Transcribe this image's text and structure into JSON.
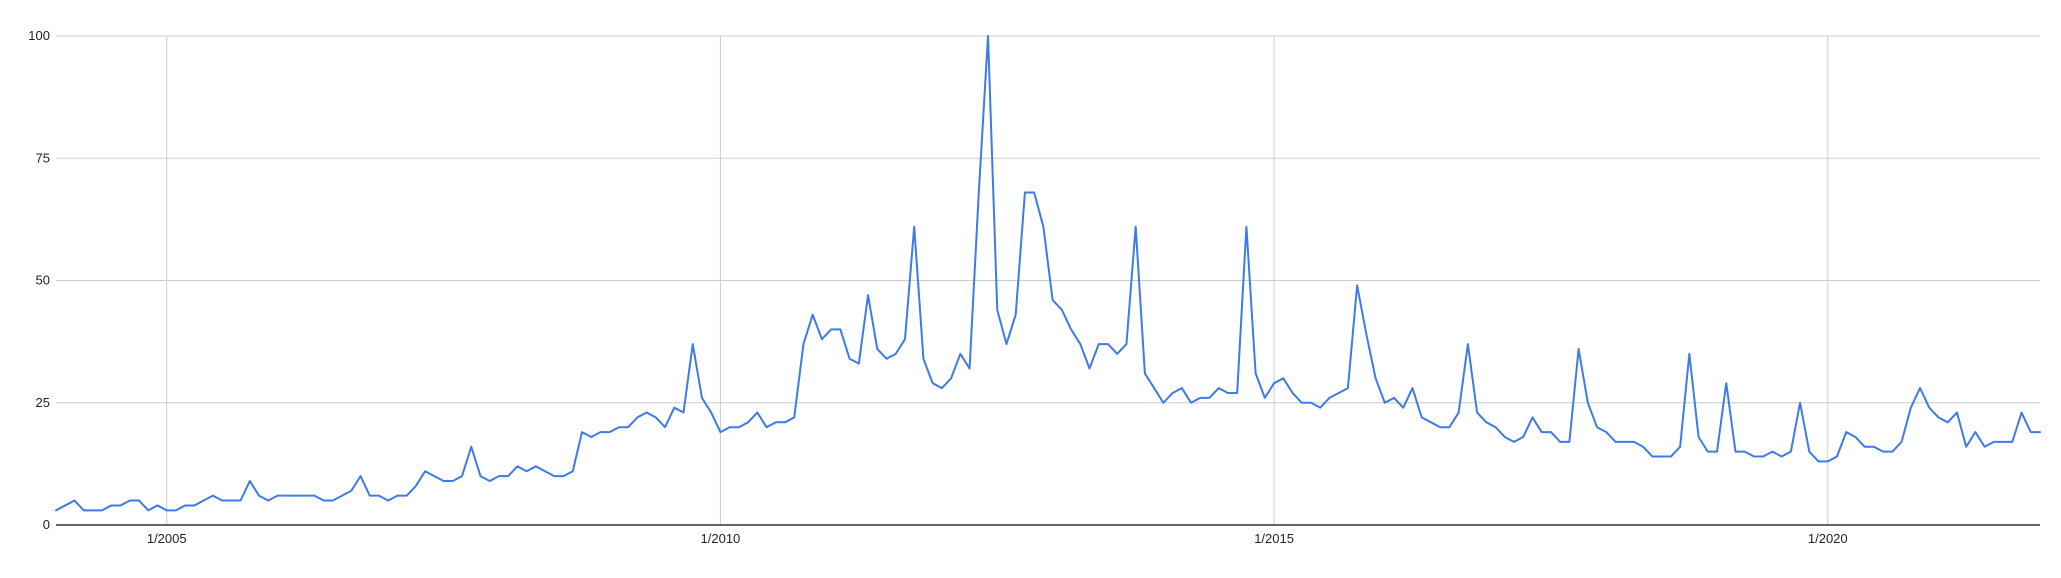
{
  "chart_data": {
    "type": "line",
    "title": "",
    "xlabel": "",
    "ylabel": "",
    "ylim": [
      0,
      100
    ],
    "yticks": [
      0,
      25,
      50,
      75,
      100
    ],
    "xticks": [
      {
        "label": "1/2005",
        "x": "2005-01"
      },
      {
        "label": "1/2010",
        "x": "2010-01"
      },
      {
        "label": "1/2015",
        "x": "2015-01"
      },
      {
        "label": "1/2020",
        "x": "2020-01"
      }
    ],
    "xlim": [
      "2004-01",
      "2021-12"
    ],
    "grid": true,
    "legend": "none",
    "colors": {
      "series": "#3d7be6",
      "grid": "#cccccc",
      "axis": "#333333"
    },
    "series": [
      {
        "x": [
          "2004-01",
          "2004-02",
          "2004-03",
          "2004-04",
          "2004-05",
          "2004-06",
          "2004-07",
          "2004-08",
          "2004-09",
          "2004-10",
          "2004-11",
          "2004-12",
          "2005-01",
          "2005-02",
          "2005-03",
          "2005-04",
          "2005-05",
          "2005-06",
          "2005-07",
          "2005-08",
          "2005-09",
          "2005-10",
          "2005-11",
          "2005-12",
          "2006-01",
          "2006-02",
          "2006-03",
          "2006-04",
          "2006-05",
          "2006-06",
          "2006-07",
          "2006-08",
          "2006-09",
          "2006-10",
          "2006-11",
          "2006-12",
          "2007-01",
          "2007-02",
          "2007-03",
          "2007-04",
          "2007-05",
          "2007-06",
          "2007-07",
          "2007-08",
          "2007-09",
          "2007-10",
          "2007-11",
          "2007-12",
          "2008-01",
          "2008-02",
          "2008-03",
          "2008-04",
          "2008-05",
          "2008-06",
          "2008-07",
          "2008-08",
          "2008-09",
          "2008-10",
          "2008-11",
          "2008-12",
          "2009-01",
          "2009-02",
          "2009-03",
          "2009-04",
          "2009-05",
          "2009-06",
          "2009-07",
          "2009-08",
          "2009-09",
          "2009-10",
          "2009-11",
          "2009-12",
          "2010-01",
          "2010-02",
          "2010-03",
          "2010-04",
          "2010-05",
          "2010-06",
          "2010-07",
          "2010-08",
          "2010-09",
          "2010-10",
          "2010-11",
          "2010-12",
          "2011-01",
          "2011-02",
          "2011-03",
          "2011-04",
          "2011-05",
          "2011-06",
          "2011-07",
          "2011-08",
          "2011-09",
          "2011-10",
          "2011-11",
          "2011-12",
          "2012-01",
          "2012-02",
          "2012-03",
          "2012-04",
          "2012-05",
          "2012-06",
          "2012-07",
          "2012-08",
          "2012-09",
          "2012-10",
          "2012-11",
          "2012-12",
          "2013-01",
          "2013-02",
          "2013-03",
          "2013-04",
          "2013-05",
          "2013-06",
          "2013-07",
          "2013-08",
          "2013-09",
          "2013-10",
          "2013-11",
          "2013-12",
          "2014-01",
          "2014-02",
          "2014-03",
          "2014-04",
          "2014-05",
          "2014-06",
          "2014-07",
          "2014-08",
          "2014-09",
          "2014-10",
          "2014-11",
          "2014-12",
          "2015-01",
          "2015-02",
          "2015-03",
          "2015-04",
          "2015-05",
          "2015-06",
          "2015-07",
          "2015-08",
          "2015-09",
          "2015-10",
          "2015-11",
          "2015-12",
          "2016-01",
          "2016-02",
          "2016-03",
          "2016-04",
          "2016-05",
          "2016-06",
          "2016-07",
          "2016-08",
          "2016-09",
          "2016-10",
          "2016-11",
          "2016-12",
          "2017-01",
          "2017-02",
          "2017-03",
          "2017-04",
          "2017-05",
          "2017-06",
          "2017-07",
          "2017-08",
          "2017-09",
          "2017-10",
          "2017-11",
          "2017-12",
          "2018-01",
          "2018-02",
          "2018-03",
          "2018-04",
          "2018-05",
          "2018-06",
          "2018-07",
          "2018-08",
          "2018-09",
          "2018-10",
          "2018-11",
          "2018-12",
          "2019-01",
          "2019-02",
          "2019-03",
          "2019-04",
          "2019-05",
          "2019-06",
          "2019-07",
          "2019-08",
          "2019-09",
          "2019-10",
          "2019-11",
          "2019-12",
          "2020-01",
          "2020-02",
          "2020-03",
          "2020-04",
          "2020-05",
          "2020-06",
          "2020-07",
          "2020-08",
          "2020-09",
          "2020-10",
          "2020-11",
          "2020-12",
          "2021-01",
          "2021-02",
          "2021-03",
          "2021-04",
          "2021-05",
          "2021-06",
          "2021-07",
          "2021-08",
          "2021-09",
          "2021-10",
          "2021-11",
          "2021-12"
        ],
        "values": [
          3,
          4,
          5,
          3,
          3,
          3,
          4,
          4,
          5,
          5,
          3,
          4,
          3,
          3,
          4,
          4,
          5,
          6,
          5,
          5,
          5,
          9,
          6,
          5,
          6,
          6,
          6,
          6,
          6,
          5,
          5,
          6,
          7,
          10,
          6,
          6,
          5,
          6,
          6,
          8,
          11,
          10,
          9,
          9,
          10,
          16,
          10,
          9,
          10,
          10,
          12,
          11,
          12,
          11,
          10,
          10,
          11,
          19,
          18,
          19,
          19,
          20,
          20,
          22,
          23,
          22,
          20,
          24,
          23,
          37,
          26,
          23,
          19,
          20,
          20,
          21,
          23,
          20,
          21,
          21,
          22,
          37,
          43,
          38,
          40,
          40,
          34,
          33,
          47,
          36,
          34,
          35,
          38,
          61,
          34,
          29,
          28,
          30,
          35,
          32,
          68,
          100,
          44,
          37,
          43,
          68,
          68,
          61,
          46,
          44,
          40,
          37,
          32,
          37,
          37,
          35,
          37,
          61,
          31,
          28,
          25,
          27,
          28,
          25,
          26,
          26,
          28,
          27,
          27,
          61,
          31,
          26,
          29,
          30,
          27,
          25,
          25,
          24,
          26,
          27,
          28,
          49,
          39,
          30,
          25,
          26,
          24,
          28,
          22,
          21,
          20,
          20,
          23,
          37,
          23,
          21,
          20,
          18,
          17,
          18,
          22,
          19,
          19,
          17,
          17,
          36,
          25,
          20,
          19,
          17,
          17,
          17,
          16,
          14,
          14,
          14,
          16,
          35,
          18,
          15,
          15,
          29,
          15,
          15,
          14,
          14,
          15,
          14,
          15,
          25,
          15,
          13,
          13,
          14,
          19,
          18,
          16,
          16,
          15,
          15,
          17,
          24,
          28,
          24,
          22,
          21,
          23,
          16,
          19,
          16,
          17,
          17,
          17,
          23,
          19,
          19
        ]
      }
    ]
  }
}
